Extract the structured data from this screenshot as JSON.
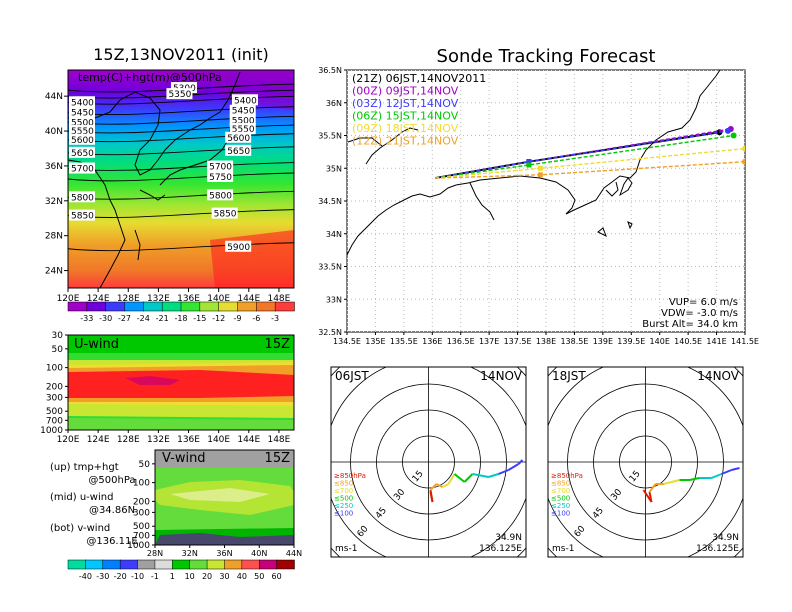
{
  "left_title": "15Z,13NOV2011 (init)",
  "main_title": "Sonde Tracking Forecast",
  "top_map": {
    "annotation": "temp(C)+hgt(m)@500hPa",
    "lon_ticks": [
      "120E",
      "124E",
      "128E",
      "132E",
      "136E",
      "140E",
      "144E",
      "148E"
    ],
    "lat_ticks": [
      "24N",
      "28N",
      "32N",
      "36N",
      "40N",
      "44N"
    ],
    "contours": [
      {
        "label": "5300",
        "lat": 44.7
      },
      {
        "label": "5350",
        "lat": 44.0
      },
      {
        "label": "5400",
        "lat": 43.3
      },
      {
        "label": "5450",
        "lat": 42.1
      },
      {
        "label": "5500",
        "lat": 41.0
      },
      {
        "label": "5550",
        "lat": 40.0
      },
      {
        "label": "5600",
        "lat": 39.0
      },
      {
        "label": "5650",
        "lat": 37.5
      },
      {
        "label": "5700",
        "lat": 35.7
      },
      {
        "label": "5750",
        "lat": 34.5
      },
      {
        "label": "5800",
        "lat": 32.4
      },
      {
        "label": "5850",
        "lat": 30.3
      },
      {
        "label": "5900",
        "lat": 26.5
      }
    ],
    "edge_labels": [
      "5400",
      "5450",
      "5500",
      "5550",
      "5600",
      "5650",
      "5700",
      "5800",
      "5850"
    ],
    "inner_labels": [
      "5300",
      "5350",
      "5400",
      "5450",
      "5500",
      "5550",
      "5600",
      "5650",
      "5700",
      "5750",
      "5800",
      "5850",
      "5900"
    ]
  },
  "temp_colorbar": {
    "labels": [
      "-33",
      "-30",
      "-27",
      "-24",
      "-21",
      "-18",
      "-15",
      "-12",
      "-9",
      "-6",
      "-3"
    ],
    "colors": [
      "#a000c8",
      "#6e00dc",
      "#3c3cff",
      "#0096ff",
      "#00c8c8",
      "#00dc80",
      "#32e632",
      "#a0e632",
      "#e6dc32",
      "#f0a028",
      "#f07828",
      "#ff3c3c"
    ]
  },
  "u_panel": {
    "label": "U-wind",
    "time": "15Z",
    "y_ticks": [
      "30",
      "50",
      "100",
      "200",
      "300",
      "500",
      "700",
      "1000"
    ],
    "x_ticks": [
      "120E",
      "124E",
      "128E",
      "132E",
      "136E",
      "140E",
      "144E",
      "148E"
    ]
  },
  "v_panel": {
    "label": "V-wind",
    "time": "15Z",
    "y_ticks": [
      "50",
      "100",
      "200",
      "300",
      "500",
      "700",
      "1000"
    ],
    "x_ticks": [
      "28N",
      "32N",
      "36N",
      "40N",
      "44N"
    ]
  },
  "legend_notes": [
    {
      "line1": "(up) tmp+hgt",
      "line2": "@500hPa"
    },
    {
      "line1": "(mid) u-wind",
      "line2": "@34.86N"
    },
    {
      "line1": "(bot) v-wind",
      "line2": "@136.11E"
    }
  ],
  "wind_colorbar": {
    "labels": [
      "-40",
      "-30",
      "-20",
      "-10",
      "-1",
      "1",
      "10",
      "20",
      "30",
      "40",
      "50",
      "60"
    ],
    "colors": [
      "#00dca0",
      "#00c8ff",
      "#0080ff",
      "#3c3cff",
      "#a0a0a0",
      "#dcdcdc",
      "#00c800",
      "#64dc3c",
      "#c8e632",
      "#f0a028",
      "#ff5050",
      "#c80078"
    ]
  },
  "chart_data": {
    "type": "line",
    "title": "Sonde Tracking Forecast",
    "xlim": [
      134.5,
      141.5
    ],
    "ylim": [
      32.5,
      36.5
    ],
    "x_ticks": [
      "134.5E",
      "135E",
      "135.5E",
      "136E",
      "136.5E",
      "137E",
      "137.5E",
      "138E",
      "138.5E",
      "139E",
      "139.5E",
      "140E",
      "140.5E",
      "141E",
      "141.5E"
    ],
    "y_ticks": [
      "32.5N",
      "33N",
      "33.5N",
      "34N",
      "34.5N",
      "35N",
      "35.5N",
      "36N",
      "36.5N"
    ],
    "series": [
      {
        "name": "(21Z)  06JST,14NOV2011",
        "color": "#000000",
        "x": [
          136.05,
          137.7,
          141.05
        ],
        "y": [
          34.85,
          35.1,
          35.55
        ],
        "end_y": 35.55
      },
      {
        "name": "(00Z)  09JST,14NOV",
        "color": "#a000c8",
        "x": [
          136.05,
          137.7,
          141.25
        ],
        "y": [
          34.85,
          35.1,
          35.6
        ]
      },
      {
        "name": "(03Z)  12JST,14NOV",
        "color": "#3c3cff",
        "x": [
          136.05,
          137.7,
          141.2
        ],
        "y": [
          34.85,
          35.1,
          35.57
        ]
      },
      {
        "name": "(06Z)  15JST,14NOV",
        "color": "#00c800",
        "x": [
          136.05,
          137.7,
          141.3
        ],
        "y": [
          34.85,
          35.05,
          35.5
        ]
      },
      {
        "name": "(09Z)  18JST,14NOV",
        "color": "#f0dc32",
        "x": [
          136.05,
          137.9,
          141.5
        ],
        "y": [
          34.85,
          35.0,
          35.3
        ]
      },
      {
        "name": "(12Z)  21JST,14NOV",
        "color": "#f0a028",
        "x": [
          136.05,
          137.9,
          141.5
        ],
        "y": [
          34.85,
          34.9,
          35.1
        ]
      }
    ],
    "info": {
      "vup": "VUP=  6.0  m/s",
      "vdw": "VDW= -3.0  m/s",
      "burst": "Burst Alt= 34.0  km"
    }
  },
  "hodographs": [
    {
      "time": "06JST",
      "date": "14NOV",
      "unit": "ms-1",
      "loc_lat": "34.9N",
      "loc_lon": "136.125E",
      "ring_labels": [
        "15",
        "30",
        "45",
        "60"
      ],
      "legend": [
        "≥850hPa",
        "≤850",
        "≤700",
        "≤500",
        "≤250",
        "≤100"
      ],
      "legend_colors": [
        "#dc1e00",
        "#f0a028",
        "#e6dc32",
        "#00c800",
        "#00c8c8",
        "#3c3cff"
      ]
    },
    {
      "time": "18JST",
      "date": "14NOV",
      "unit": "ms-1",
      "loc_lat": "34.9N",
      "loc_lon": "136.125E",
      "ring_labels": [
        "15",
        "30",
        "45",
        "60"
      ],
      "legend": [
        "≥850hPa",
        "≤850",
        "≤700",
        "≤500",
        "≤250",
        "≤100"
      ],
      "legend_colors": [
        "#dc1e00",
        "#f0a028",
        "#e6dc32",
        "#00c800",
        "#00c8c8",
        "#3c3cff"
      ]
    }
  ]
}
